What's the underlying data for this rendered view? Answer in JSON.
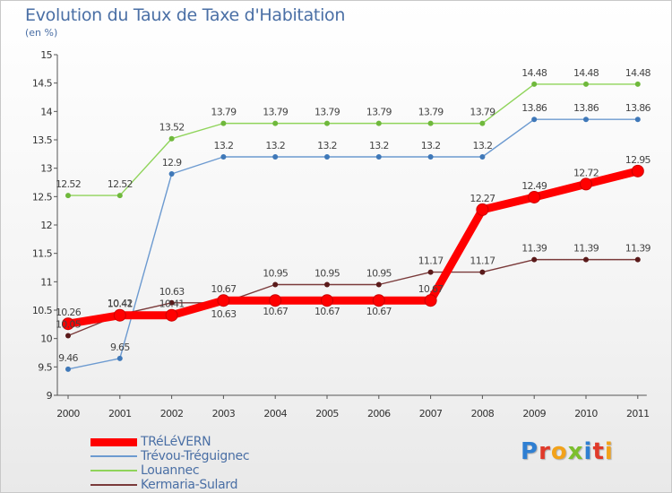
{
  "header": {
    "title": "Evolution du Taux de Taxe d'Habitation",
    "subtitle": "(en %)"
  },
  "logo": {
    "text": "Proxiti",
    "letter_colors": [
      "#2f7fd2",
      "#e03a2a",
      "#f2a21a",
      "#7cbf2e",
      "#2f7fd2",
      "#e03a2a",
      "#f2a21a"
    ]
  },
  "chart_data": {
    "type": "line",
    "title": "Evolution du Taux de Taxe d'Habitation",
    "ylabel": "(en %)",
    "xlabel": "",
    "ylim": [
      9,
      15
    ],
    "y_ticks": [
      "9",
      "9.5",
      "10",
      "10.5",
      "11",
      "11.5",
      "12",
      "12.5",
      "13",
      "13.5",
      "14",
      "14.5",
      "15"
    ],
    "categories": [
      "2000",
      "2001",
      "2002",
      "2003",
      "2004",
      "2005",
      "2006",
      "2007",
      "2008",
      "2009",
      "2010",
      "2011"
    ],
    "series": [
      {
        "name": "TRéLéVERN",
        "color": "#ff0000",
        "marker_color": "#ff0000",
        "emphasis": true,
        "values": [
          10.26,
          10.41,
          10.41,
          10.67,
          10.67,
          10.67,
          10.67,
          10.67,
          12.27,
          12.49,
          12.72,
          12.95
        ],
        "labels": [
          "10.26",
          "10.41",
          "10.41",
          "10.67",
          "10.67",
          "10.67",
          "10.67",
          "10.67",
          "12.27",
          "12.49",
          "12.72",
          "12.95"
        ],
        "label_pos": [
          "above",
          "above",
          "above",
          "above",
          "below",
          "below",
          "below",
          "above",
          "above",
          "above",
          "above",
          "above"
        ]
      },
      {
        "name": "Trévou-Tréguignec",
        "color": "#6c9ad0",
        "marker_color": "#3f78b8",
        "emphasis": false,
        "values": [
          9.46,
          9.65,
          12.9,
          13.2,
          13.2,
          13.2,
          13.2,
          13.2,
          13.2,
          13.86,
          13.86,
          13.86
        ],
        "labels": [
          "9.46",
          "9.65",
          "12.9",
          "13.2",
          "13.2",
          "13.2",
          "13.2",
          "13.2",
          "13.2",
          "13.86",
          "13.86",
          "13.86"
        ],
        "label_pos": [
          "above",
          "above",
          "above",
          "above",
          "above",
          "above",
          "above",
          "above",
          "above",
          "above",
          "above",
          "above"
        ]
      },
      {
        "name": "Louannec",
        "color": "#8fd45a",
        "marker_color": "#6fb83c",
        "emphasis": false,
        "values": [
          12.52,
          12.52,
          13.52,
          13.79,
          13.79,
          13.79,
          13.79,
          13.79,
          13.79,
          14.48,
          14.48,
          14.48
        ],
        "labels": [
          "12.52",
          "12.52",
          "13.52",
          "13.79",
          "13.79",
          "13.79",
          "13.79",
          "13.79",
          "13.79",
          "14.48",
          "14.48",
          "14.48"
        ],
        "label_pos": [
          "above",
          "above",
          "above",
          "above",
          "above",
          "above",
          "above",
          "above",
          "above",
          "above",
          "above",
          "above"
        ]
      },
      {
        "name": "Kermaria-Sulard",
        "color": "#7a3a3a",
        "marker_color": "#5a1a1a",
        "emphasis": false,
        "values": [
          10.05,
          10.42,
          10.63,
          10.63,
          10.95,
          10.95,
          10.95,
          11.17,
          11.17,
          11.39,
          11.39,
          11.39
        ],
        "labels": [
          "10.05",
          "10.42",
          "10.63",
          "10.63",
          "10.95",
          "10.95",
          "10.95",
          "11.17",
          "11.17",
          "11.39",
          "11.39",
          "11.39"
        ],
        "label_pos": [
          "above",
          "above",
          "above",
          "below",
          "above",
          "above",
          "above",
          "above",
          "above",
          "above",
          "above",
          "above"
        ]
      }
    ]
  }
}
